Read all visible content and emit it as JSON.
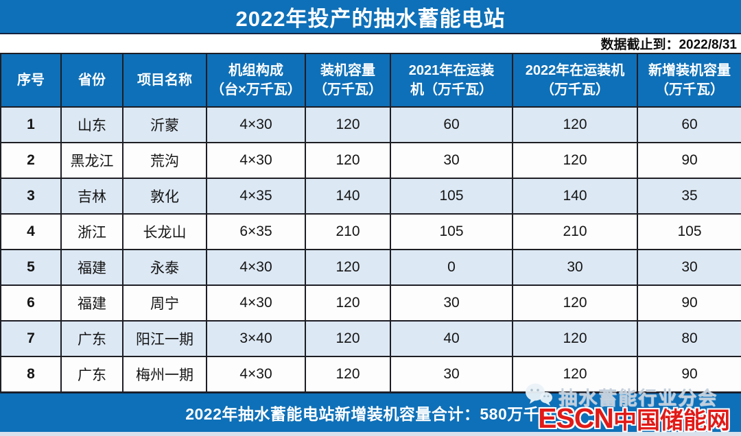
{
  "title": "2022年投产的抽水蓄能电站",
  "data_cutoff": "数据截止到：2022/8/31",
  "footer": {
    "total": "2022年抽水蓄能电站新增装机容量合计：580万千瓦"
  },
  "watermark": {
    "icon": "wechat-icon",
    "label": "抽水蓄能行业分会"
  },
  "logo": {
    "latin": "ESCN",
    "cjk": "中国储能网"
  },
  "colors": {
    "primary_blue": "#0e70b8",
    "row_alt_blue": "#dce8f4",
    "border_dark": "#1d1d24",
    "logo_red": "#e01a17"
  },
  "chart_data": {
    "type": "table",
    "title": "2022年投产的抽水蓄能电站",
    "data_cutoff": "2022/8/31",
    "columns": [
      "序号",
      "省份",
      "项目名称",
      "机组构成\n（台×万千瓦）",
      "装机容量\n（万千瓦）",
      "2021年在运装\n机（万千瓦）",
      "2022年在运装机\n（万千瓦）",
      "新增装机容量\n（万千瓦）"
    ],
    "rows": [
      [
        "1",
        "山东",
        "沂蒙",
        "4×30",
        "120",
        "60",
        "120",
        "60"
      ],
      [
        "2",
        "黑龙江",
        "荒沟",
        "4×30",
        "120",
        "30",
        "120",
        "90"
      ],
      [
        "3",
        "吉林",
        "敦化",
        "4×35",
        "140",
        "105",
        "140",
        "35"
      ],
      [
        "4",
        "浙江",
        "长龙山",
        "6×35",
        "210",
        "105",
        "210",
        "105"
      ],
      [
        "5",
        "福建",
        "永泰",
        "4×30",
        "120",
        "0",
        "30",
        "30"
      ],
      [
        "6",
        "福建",
        "周宁",
        "4×30",
        "120",
        "30",
        "120",
        "90"
      ],
      [
        "7",
        "广东",
        "阳江一期",
        "3×40",
        "120",
        "40",
        "120",
        "80"
      ],
      [
        "8",
        "广东",
        "梅州一期",
        "4×30",
        "120",
        "30",
        "120",
        "90"
      ]
    ],
    "total_new_capacity": "580万千瓦"
  }
}
